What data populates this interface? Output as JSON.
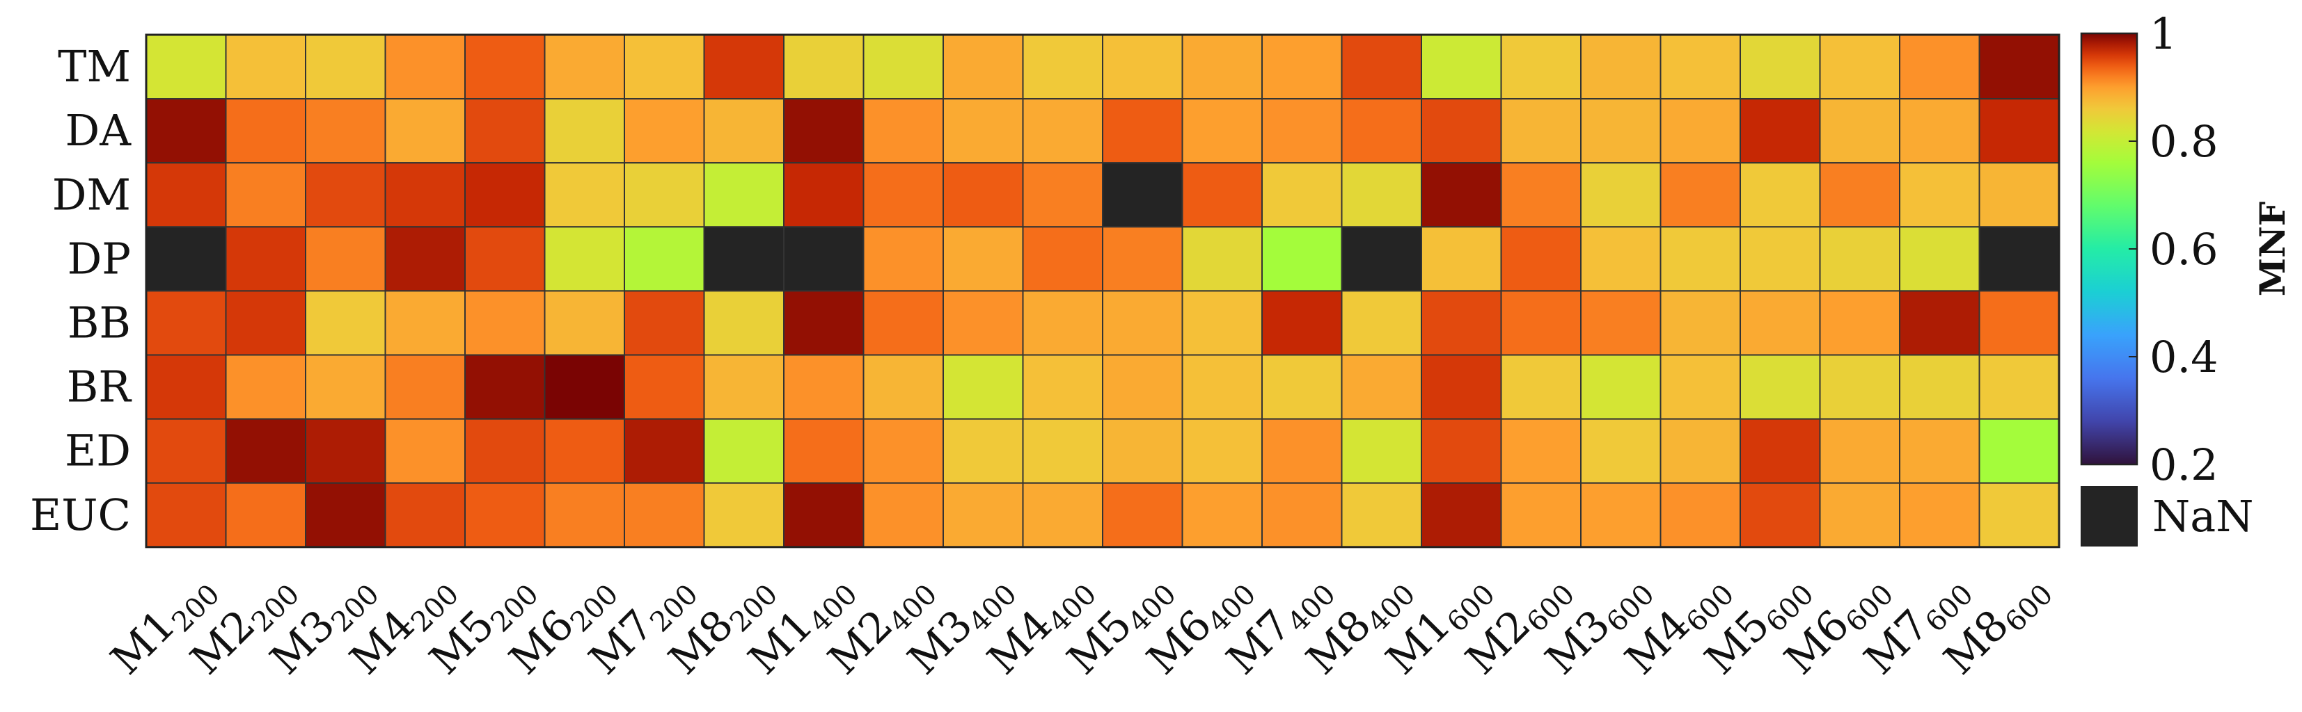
{
  "chart_data": {
    "type": "heatmap",
    "rows": [
      "TM",
      "DA",
      "DM",
      "DP",
      "BB",
      "BR",
      "ED",
      "EUC"
    ],
    "columns": [
      {
        "base": "M1",
        "sub": "200"
      },
      {
        "base": "M2",
        "sub": "200"
      },
      {
        "base": "M3",
        "sub": "200"
      },
      {
        "base": "M4",
        "sub": "200"
      },
      {
        "base": "M5",
        "sub": "200"
      },
      {
        "base": "M6",
        "sub": "200"
      },
      {
        "base": "M7",
        "sub": "200"
      },
      {
        "base": "M8",
        "sub": "200"
      },
      {
        "base": "M1",
        "sub": "400"
      },
      {
        "base": "M2",
        "sub": "400"
      },
      {
        "base": "M3",
        "sub": "400"
      },
      {
        "base": "M4",
        "sub": "400"
      },
      {
        "base": "M5",
        "sub": "400"
      },
      {
        "base": "M6",
        "sub": "400"
      },
      {
        "base": "M7",
        "sub": "400"
      },
      {
        "base": "M8",
        "sub": "400"
      },
      {
        "base": "M1",
        "sub": "600"
      },
      {
        "base": "M2",
        "sub": "600"
      },
      {
        "base": "M3",
        "sub": "600"
      },
      {
        "base": "M4",
        "sub": "600"
      },
      {
        "base": "M5",
        "sub": "600"
      },
      {
        "base": "M6",
        "sub": "600"
      },
      {
        "base": "M7",
        "sub": "600"
      },
      {
        "base": "M8",
        "sub": "600"
      }
    ],
    "values": [
      [
        0.82,
        0.87,
        0.86,
        0.91,
        0.94,
        0.89,
        0.87,
        0.96,
        0.85,
        0.83,
        0.89,
        0.86,
        0.87,
        0.89,
        0.9,
        0.95,
        0.81,
        0.86,
        0.88,
        0.87,
        0.84,
        0.87,
        0.91,
        0.99
      ],
      [
        0.99,
        0.93,
        0.92,
        0.89,
        0.95,
        0.85,
        0.9,
        0.88,
        0.99,
        0.91,
        0.89,
        0.89,
        0.94,
        0.9,
        0.91,
        0.93,
        0.95,
        0.88,
        0.88,
        0.89,
        0.97,
        0.88,
        0.89,
        0.97
      ],
      [
        0.96,
        0.92,
        0.95,
        0.96,
        0.97,
        0.86,
        0.85,
        0.8,
        0.97,
        0.93,
        0.94,
        0.92,
        null,
        0.94,
        0.86,
        0.84,
        0.99,
        0.92,
        0.85,
        0.92,
        0.86,
        0.92,
        0.87,
        0.88
      ],
      [
        null,
        0.96,
        0.92,
        0.98,
        0.95,
        0.82,
        0.78,
        null,
        null,
        0.91,
        0.89,
        0.93,
        0.92,
        0.84,
        0.76,
        null,
        0.87,
        0.94,
        0.87,
        0.86,
        0.86,
        0.85,
        0.83,
        null
      ],
      [
        0.95,
        0.96,
        0.86,
        0.89,
        0.91,
        0.88,
        0.95,
        0.85,
        0.99,
        0.93,
        0.91,
        0.89,
        0.89,
        0.87,
        0.97,
        0.86,
        0.95,
        0.93,
        0.92,
        0.88,
        0.89,
        0.9,
        0.98,
        0.93
      ],
      [
        0.96,
        0.91,
        0.89,
        0.92,
        0.99,
        1.0,
        0.94,
        0.88,
        0.91,
        0.88,
        0.82,
        0.87,
        0.89,
        0.87,
        0.86,
        0.89,
        0.96,
        0.86,
        0.82,
        0.87,
        0.83,
        0.85,
        0.85,
        0.86
      ],
      [
        0.95,
        0.99,
        0.98,
        0.91,
        0.95,
        0.94,
        0.98,
        0.8,
        0.93,
        0.91,
        0.86,
        0.86,
        0.88,
        0.87,
        0.91,
        0.82,
        0.95,
        0.9,
        0.86,
        0.88,
        0.96,
        0.89,
        0.89,
        0.76
      ],
      [
        0.95,
        0.93,
        0.99,
        0.95,
        0.94,
        0.92,
        0.92,
        0.86,
        0.99,
        0.91,
        0.89,
        0.89,
        0.93,
        0.9,
        0.91,
        0.86,
        0.98,
        0.9,
        0.9,
        0.91,
        0.95,
        0.89,
        0.9,
        0.86
      ]
    ],
    "colorbar": {
      "label": "MNF",
      "range": [
        0.2,
        1
      ],
      "ticks": [
        "1",
        "0.8",
        "0.6",
        "0.4",
        "0.2"
      ],
      "colormap": "turbo",
      "nan_label": "NaN",
      "nan_color": "#242424"
    },
    "grid_color": "#333333"
  }
}
